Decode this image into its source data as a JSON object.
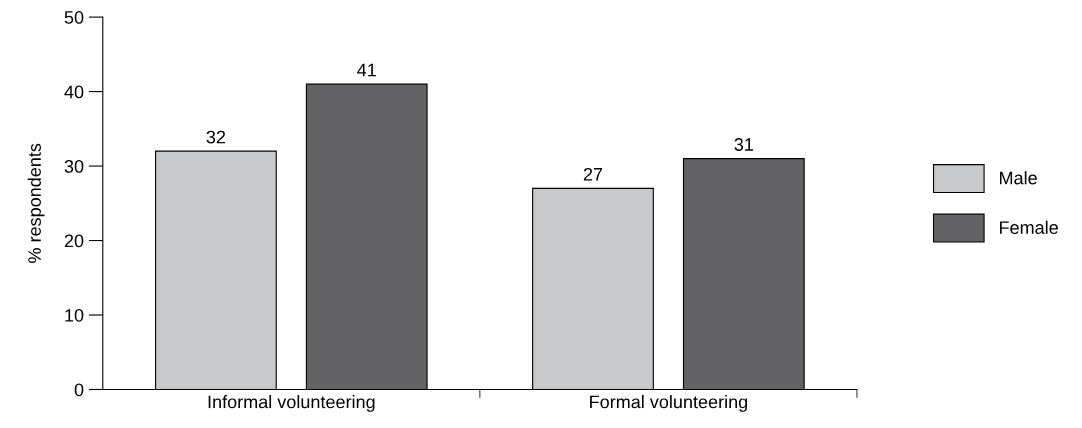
{
  "chart_data": {
    "type": "bar",
    "ylabel": "% respondents",
    "categories": [
      "Informal volunteering",
      "Formal volunteering"
    ],
    "series": [
      {
        "name": "Male",
        "color": "#c8c9cb",
        "values": [
          32,
          27
        ]
      },
      {
        "name": "Female",
        "color": "#636365",
        "values": [
          41,
          31
        ]
      }
    ],
    "ylim": [
      0,
      50
    ],
    "yticks": [
      0,
      10,
      20,
      30,
      40,
      50
    ],
    "data_labels": true,
    "legend": "right",
    "grid": false
  }
}
